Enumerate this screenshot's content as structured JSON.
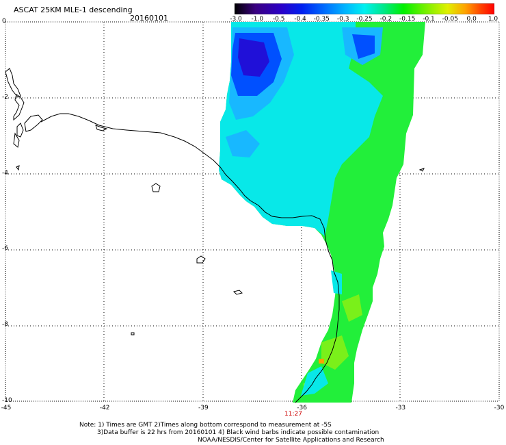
{
  "header": {
    "title": "ASCAT 25KM MLE-1 descending",
    "date": "20160101"
  },
  "colorbar": {
    "ticks": [
      "-3.0",
      "-1.0",
      "-0.5",
      "-0.4",
      "-0.35",
      "-0.3",
      "-0.25",
      "-0.2",
      "-0.15",
      "-0.1",
      "-0.05",
      "0.0",
      "1.0"
    ],
    "colors": [
      "#000000",
      "#3a0080",
      "#2a00c8",
      "#0020f0",
      "#0070ff",
      "#00b8ff",
      "#00f0f0",
      "#00e890",
      "#00f000",
      "#70f000",
      "#e0f000",
      "#ffa000",
      "#ff4000",
      "#ff0000"
    ]
  },
  "axes": {
    "y_labels": [
      "0",
      "-2",
      "-4",
      "-6",
      "-8",
      "-10"
    ],
    "x_labels": [
      "-45",
      "-42",
      "-39",
      "-36",
      "-33",
      "-30"
    ],
    "lat_range": [
      -10,
      0
    ],
    "lon_range": [
      -45,
      -30
    ],
    "grid": "dotted"
  },
  "pass_time": "11:27",
  "notes": {
    "line1": "Note: 1) Times are GMT 2)Times along bottom correspond to measurement at -5S",
    "line2": "3)Data buffer is 22 hrs from 20160101 4) Black wind barbs indicate possible contamination",
    "line3": "NOAA/NESDIS/Center for Satellite Applications and Research"
  }
}
